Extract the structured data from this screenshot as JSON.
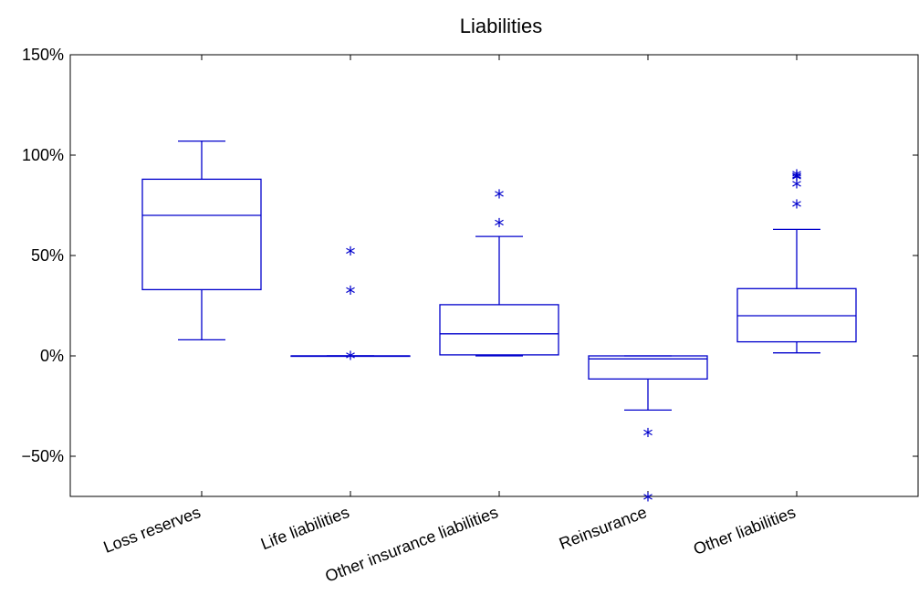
{
  "chart_data": {
    "type": "box",
    "title": "Liabilities",
    "xlabel": "",
    "ylabel": "",
    "ylim": [
      -70,
      150
    ],
    "yticks": [
      -50,
      0,
      50,
      100,
      150
    ],
    "ytick_labels": [
      "−50%",
      "0%",
      "50%",
      "100%",
      "150%"
    ],
    "categories": [
      "Loss reserves",
      "Life liabilities",
      "Other insurance liabilities",
      "Reinsurance",
      "Other liabilities"
    ],
    "series_color": "#0000cc",
    "boxes": [
      {
        "category": "Loss reserves",
        "whisker_low": 8,
        "q1": 33,
        "median": 70,
        "q3": 88,
        "whisker_high": 107,
        "outliers": []
      },
      {
        "category": "Life liabilities",
        "whisker_low": 0,
        "q1": 0,
        "median": 0,
        "q3": 0,
        "whisker_high": 0,
        "outliers": [
          0.5,
          33,
          52.5
        ]
      },
      {
        "category": "Other insurance liabilities",
        "whisker_low": 0,
        "q1": 0.5,
        "median": 11,
        "q3": 25.5,
        "whisker_high": 59.5,
        "outliers": [
          66.5,
          81
        ]
      },
      {
        "category": "Reinsurance",
        "whisker_low": -27,
        "q1": -11.5,
        "median": -1.5,
        "q3": 0,
        "whisker_high": 0,
        "outliers": [
          -38,
          -70
        ]
      },
      {
        "category": "Other liabilities",
        "whisker_low": 1.5,
        "q1": 7,
        "median": 20,
        "q3": 33.5,
        "whisker_high": 63,
        "outliers": [
          76,
          86,
          89.5,
          90,
          91
        ]
      }
    ]
  }
}
